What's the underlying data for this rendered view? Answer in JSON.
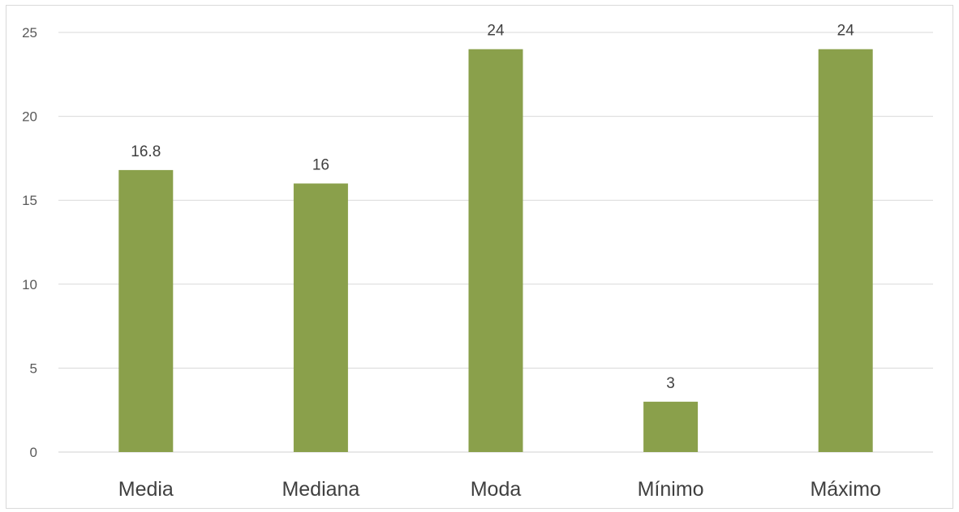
{
  "chart_data": {
    "type": "bar",
    "categories": [
      "Media",
      "Mediana",
      "Moda",
      "Mínimo",
      "Máximo"
    ],
    "values": [
      16.8,
      16,
      24,
      3,
      24
    ],
    "data_labels": [
      "16.8",
      "16",
      "24",
      "3",
      "24"
    ],
    "title": "",
    "xlabel": "",
    "ylabel": "",
    "ylim": [
      0,
      25
    ],
    "yticks": [
      0,
      5,
      10,
      15,
      20,
      25
    ],
    "grid": true,
    "legend": "none",
    "bar_color": "#8aa04b"
  }
}
